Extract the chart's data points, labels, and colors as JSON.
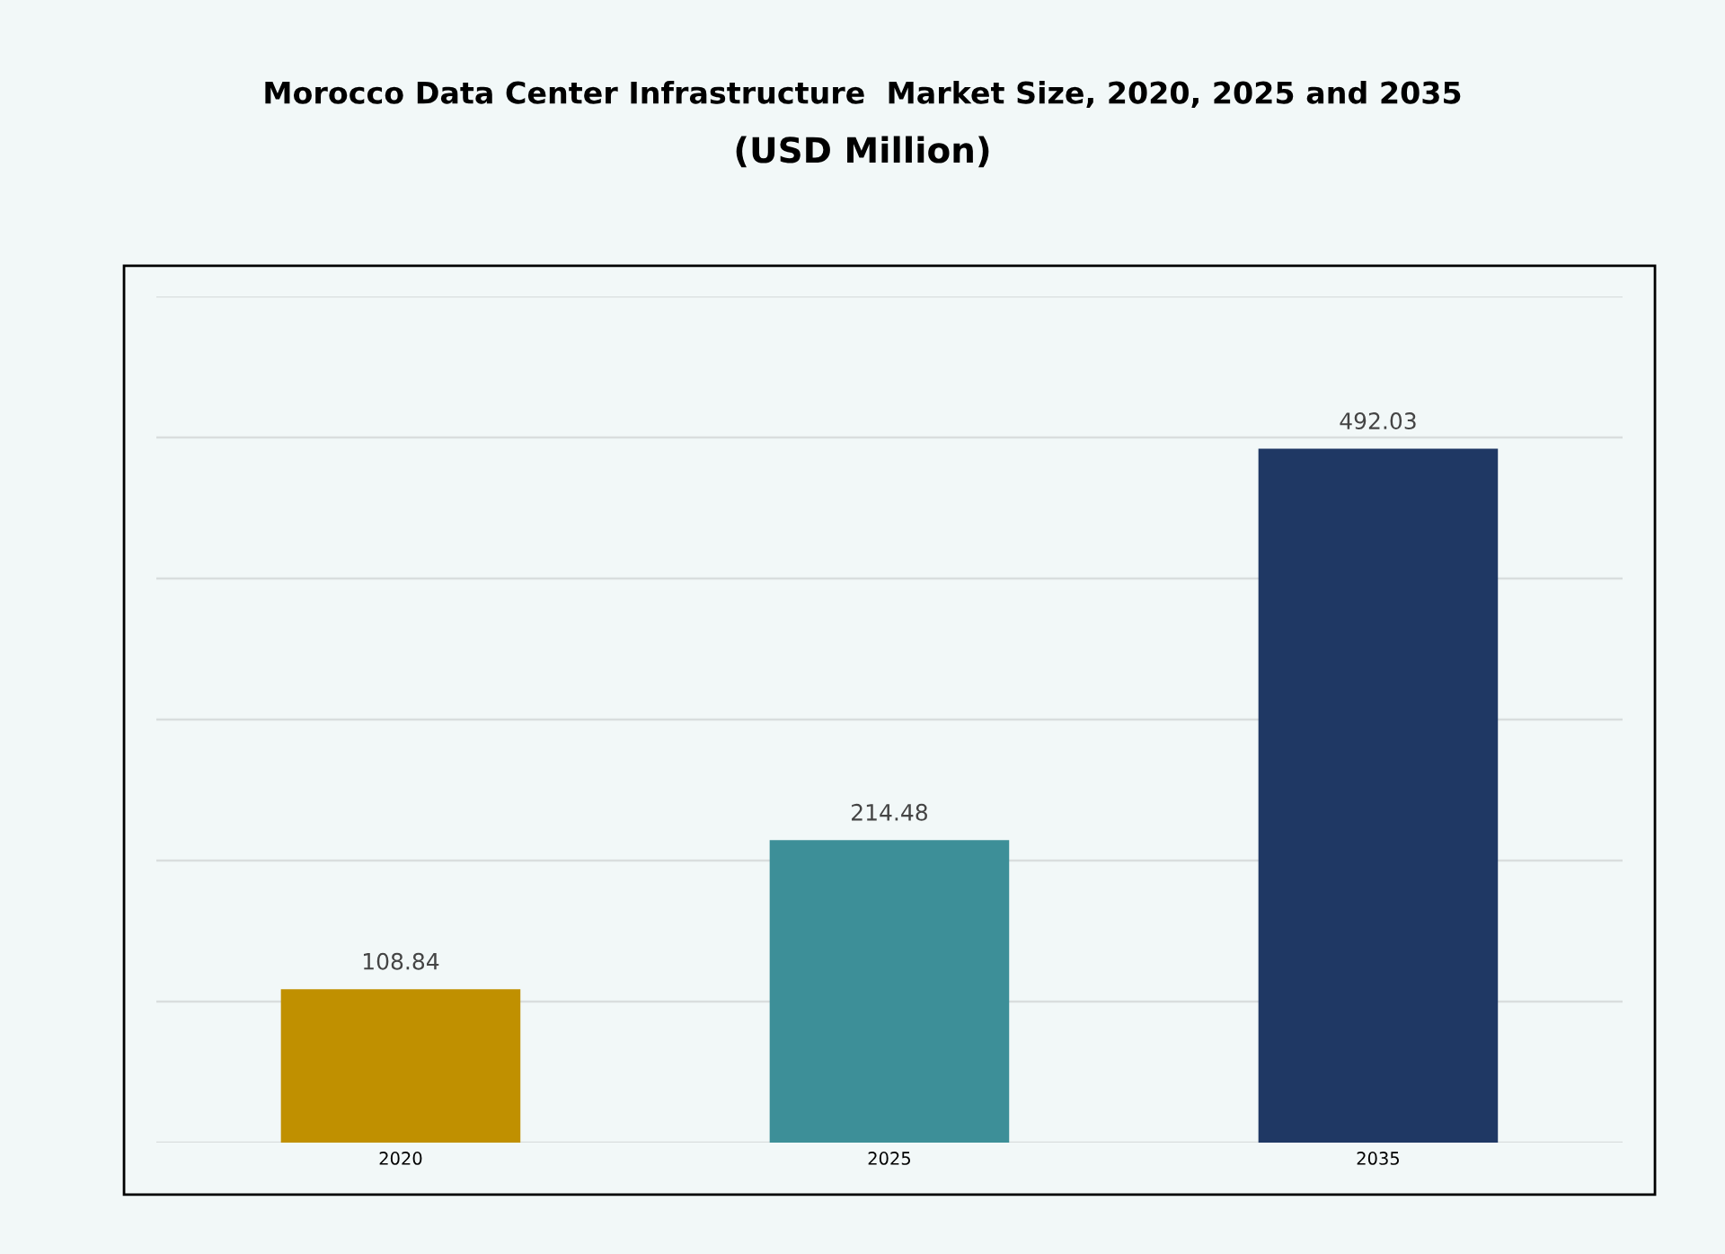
{
  "chart_data": {
    "type": "bar",
    "title": "Morocco Data Center Infrastructure  Market Size, 2020, 2025 and 2035",
    "subtitle": "(USD Million)",
    "categories": [
      "2020",
      "2025",
      "2035"
    ],
    "values": [
      108.84,
      214.48,
      492.03
    ],
    "colors": [
      "#c09000",
      "#3d8f98",
      "#1f3864"
    ],
    "ylim": [
      0,
      600
    ],
    "yticks": [
      {
        "value": 0,
        "label": null
      },
      {
        "value": 100,
        "label": null
      },
      {
        "value": 200,
        "label": null
      },
      {
        "value": 300,
        "label": null
      },
      {
        "value": 400,
        "label": null
      },
      {
        "value": 500,
        "label": null
      },
      {
        "value": 600,
        "label": null
      }
    ],
    "tick_labels": "x",
    "grid": "y",
    "data_labels": true,
    "legend": false
  }
}
